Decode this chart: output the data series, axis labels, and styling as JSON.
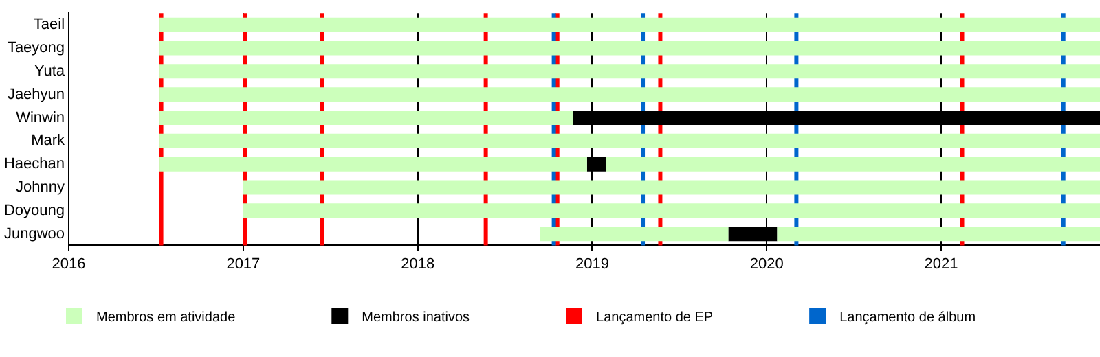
{
  "chart_data": {
    "type": "bar",
    "orientation": "horizontal",
    "categories": [
      "Taeil",
      "Taeyong",
      "Yuta",
      "Jaehyun",
      "Winwin",
      "Mark",
      "Haechan",
      "Johnny",
      "Doyoung",
      "Jungwoo"
    ],
    "series": [
      {
        "name": "Membros em atividade",
        "color": "#ccffbb",
        "base": [
          2016.52,
          2016.52,
          2016.52,
          2016.52,
          2016.52,
          2016.52,
          2016.52,
          2017.0,
          2017.0,
          2018.7
        ],
        "values": [
          5.39,
          5.39,
          5.39,
          5.39,
          2.37,
          5.39,
          2.45,
          4.91,
          4.91,
          1.08
        ]
      },
      {
        "color": "#ccffbb",
        "base": [
          null,
          null,
          null,
          null,
          null,
          null,
          2019.08,
          null,
          null,
          2020.06
        ],
        "values": [
          null,
          null,
          null,
          null,
          null,
          null,
          2.83,
          null,
          null,
          1.85
        ]
      },
      {
        "name": "Membros inativos",
        "color": "#000000",
        "base": [
          null,
          null,
          null,
          null,
          2018.89,
          null,
          2018.97,
          null,
          null,
          2019.78
        ],
        "values": [
          null,
          null,
          null,
          null,
          3.02,
          null,
          0.11,
          null,
          null,
          0.28
        ]
      }
    ],
    "ref_lines": [
      {
        "axis": "x",
        "value": 2016.53,
        "label": "Lançamento de EP",
        "color": "#ff0000"
      },
      {
        "axis": "x",
        "value": 2017.01,
        "color": "#ff0000"
      },
      {
        "axis": "x",
        "value": 2017.45,
        "color": "#ff0000"
      },
      {
        "axis": "x",
        "value": 2018.39,
        "color": "#ff0000"
      },
      {
        "axis": "x",
        "value": 2018.8,
        "color": "#ff0000"
      },
      {
        "axis": "x",
        "value": 2019.39,
        "color": "#ff0000"
      },
      {
        "axis": "x",
        "value": 2021.12,
        "color": "#ff0000"
      },
      {
        "axis": "x",
        "value": 2018.78,
        "label": "Lançamento de álbum",
        "color": "#0066cc"
      },
      {
        "axis": "x",
        "value": 2019.29,
        "color": "#0066cc"
      },
      {
        "axis": "x",
        "value": 2020.17,
        "color": "#0066cc"
      },
      {
        "axis": "x",
        "value": 2021.7,
        "color": "#0066cc"
      }
    ],
    "xlim": [
      2016,
      2021.91
    ],
    "xticks": [
      2016,
      2017,
      2018,
      2019,
      2020,
      2021
    ],
    "grid": "x",
    "legend": "bottom"
  }
}
